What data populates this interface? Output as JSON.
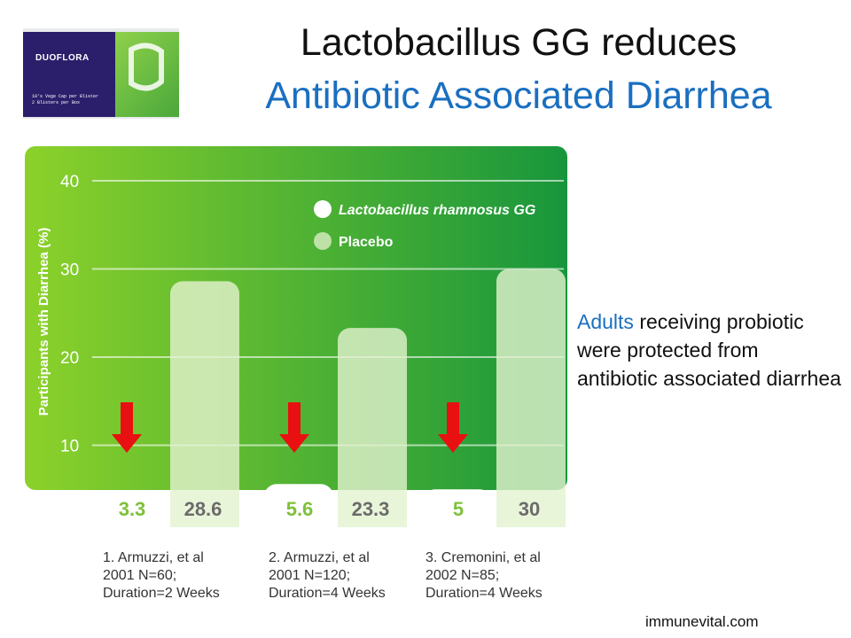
{
  "header": {
    "title_line1": "Lactobacillus GG reduces",
    "title_line2": "Antibiotic Associated Diarrhea"
  },
  "product_image": {
    "brand": "DUOFLORA",
    "small_text": "10's Vege Cap per Blister\n2 Blisters per Box"
  },
  "chart_data": {
    "type": "bar",
    "ylabel": "Participants with Diarrhea (%)",
    "ylim": [
      0,
      40
    ],
    "y_ticks": [
      10,
      20,
      30,
      40
    ],
    "grid": true,
    "legend_position": "top-right",
    "series": [
      {
        "name": "Lactobacillus rhamnosus GG",
        "values": [
          3.3,
          5.6,
          5
        ]
      },
      {
        "name": "Placebo",
        "values": [
          28.6,
          23.3,
          30
        ]
      }
    ],
    "value_labels": {
      "lgg": [
        "3.3",
        "5.6",
        "5"
      ],
      "placebo": [
        "28.6",
        "23.3",
        "30"
      ]
    },
    "categories": [
      "1. Armuzzi, et al 2001 N=60; Duration=2 Weeks",
      "2. Armuzzi, et al 2001 N=120; Duration=4 Weeks",
      "3. Cremonini, et al 2002 N=85; Duration=4 Weeks"
    ],
    "colors": {
      "bg_start": "#8cd12a",
      "bg_end": "#18963c",
      "lgg_bar": "#ffffff",
      "placebo_bar": "#e4f2cf",
      "arrow": "#e81010",
      "lgg_label": "#7ec13a",
      "placebo_label": "#6b6b6b"
    }
  },
  "footnotes": [
    {
      "line1": "1. Armuzzi, et al",
      "line2": "2001 N=60;",
      "line3": "Duration=2 Weeks"
    },
    {
      "line1": "2. Armuzzi, et al",
      "line2": "2001 N=120;",
      "line3": "Duration=4 Weeks"
    },
    {
      "line1": "3. Cremonini, et al",
      "line2": "2002 N=85;",
      "line3": "Duration=4 Weeks"
    }
  ],
  "side_note": {
    "highlight": "Adults",
    "rest": " receiving probiotic were protected from antibiotic associated diarrhea"
  },
  "footer": "immunevital.com"
}
